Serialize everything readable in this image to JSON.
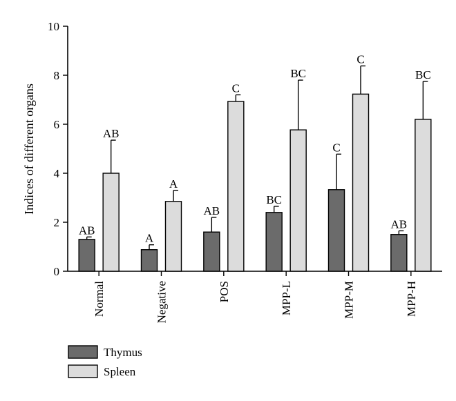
{
  "chart_data": {
    "type": "bar",
    "title": "",
    "xlabel": "",
    "ylabel": "Indices of different organs",
    "ylim": [
      0,
      10
    ],
    "yticks": [
      0,
      2,
      4,
      6,
      8,
      10
    ],
    "categories": [
      "Normal",
      "Negative",
      "POS",
      "MPP-L",
      "MPP-M",
      "MPP-H"
    ],
    "series": [
      {
        "name": "Thymus",
        "color": "#6b6b6b",
        "values": [
          1.3,
          0.88,
          1.6,
          2.4,
          3.33,
          1.5
        ],
        "errors": [
          0.1,
          0.2,
          0.6,
          0.25,
          1.45,
          0.15
        ],
        "labels": [
          "AB",
          "A",
          "AB",
          "BC",
          "C",
          "AB"
        ]
      },
      {
        "name": "Spleen",
        "color": "#dcdcdc",
        "values": [
          4.0,
          2.85,
          6.93,
          5.77,
          7.23,
          6.2
        ],
        "errors": [
          1.35,
          0.45,
          0.27,
          2.03,
          1.15,
          1.55
        ],
        "labels": [
          "AB",
          "A",
          "C",
          "BC",
          "C",
          "BC"
        ]
      }
    ],
    "grid": false,
    "legend_position": "bottom-left"
  }
}
